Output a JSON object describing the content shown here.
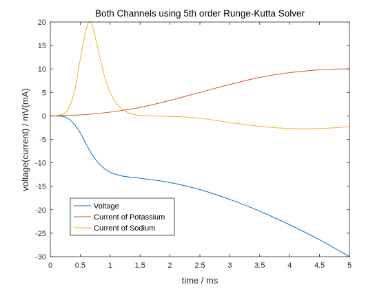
{
  "chart_data": {
    "type": "line",
    "title": "Both Channels using 5th order Runge-Kutta Solver",
    "xlabel": "time / ms",
    "ylabel": "voltage(current) / mV(mA)",
    "xlim": [
      0,
      5
    ],
    "ylim": [
      -30,
      20
    ],
    "x_ticks": [
      "0",
      "0.5",
      "1",
      "1.5",
      "2",
      "2.5",
      "3",
      "3.5",
      "4",
      "4.5",
      "5"
    ],
    "y_ticks": [
      "20",
      "15",
      "10",
      "5",
      "0",
      "-5",
      "-10",
      "-15",
      "-20",
      "-25",
      "-30"
    ],
    "grid": false,
    "legend_position": "bottom-left",
    "series": [
      {
        "name": "Voltage",
        "color": "#0072BD",
        "x": [
          0,
          0.2,
          0.3,
          0.4,
          0.5,
          0.6,
          0.7,
          0.8,
          0.9,
          1.0,
          1.2,
          1.5,
          2.0,
          2.5,
          3.0,
          3.5,
          4.0,
          4.5,
          5.0
        ],
        "y": [
          0,
          -0.1,
          -0.6,
          -1.8,
          -3.6,
          -6.0,
          -8.3,
          -10.0,
          -11.2,
          -12.0,
          -12.8,
          -13.3,
          -14.2,
          -15.7,
          -17.8,
          -20.3,
          -23.2,
          -26.4,
          -30.0
        ]
      },
      {
        "name": "Current of Potassium",
        "color": "#D95319",
        "x": [
          0,
          0.5,
          1.0,
          1.5,
          2.0,
          2.5,
          3.0,
          3.5,
          4.0,
          4.5,
          4.8,
          5.0
        ],
        "y": [
          0,
          0.2,
          0.8,
          1.8,
          3.3,
          5.0,
          6.7,
          8.2,
          9.2,
          9.8,
          10.0,
          10.0
        ]
      },
      {
        "name": "Current of Sodium",
        "color": "#EDB120",
        "x": [
          0,
          0.2,
          0.3,
          0.4,
          0.5,
          0.6,
          0.65,
          0.7,
          0.8,
          0.9,
          1.0,
          1.1,
          1.2,
          1.3,
          1.4,
          1.5,
          1.75,
          2.0,
          2.5,
          3.0,
          3.5,
          4.0,
          4.5,
          5.0
        ],
        "y": [
          0,
          0.3,
          1.5,
          5.0,
          12.0,
          18.5,
          20.0,
          19.3,
          14.0,
          8.6,
          5.0,
          2.8,
          1.5,
          0.7,
          0.3,
          0.1,
          -0.05,
          -0.1,
          -0.5,
          -1.4,
          -2.2,
          -2.7,
          -2.7,
          -2.3
        ]
      }
    ]
  }
}
